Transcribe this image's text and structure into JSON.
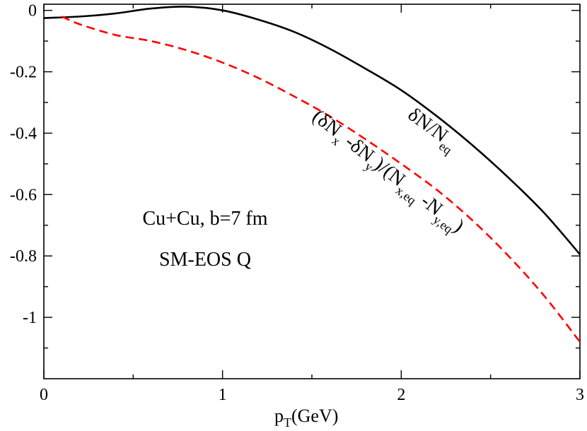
{
  "chart_data": {
    "type": "line",
    "title": "",
    "xlabel": "p",
    "xlabel_sub": "T",
    "xlabel_unit": "(GeV)",
    "ylabel": "",
    "xlim": [
      0,
      3
    ],
    "ylim": [
      -1.2,
      0.02
    ],
    "x_ticks": [
      0,
      1,
      2,
      3
    ],
    "x_tick_labels": [
      "0",
      "1",
      "2",
      "3"
    ],
    "y_ticks": [
      0,
      -0.2,
      -0.4,
      -0.6,
      -0.8,
      -1
    ],
    "y_tick_labels": [
      "0",
      "-0.2",
      "-0.4",
      "-0.6",
      "-0.8",
      "-1"
    ],
    "grid": false,
    "series": [
      {
        "name": "δN/N_eq",
        "color": "#000000",
        "dash": "solid",
        "x": [
          0,
          0.2,
          0.4,
          0.6,
          0.8,
          1.0,
          1.2,
          1.4,
          1.6,
          1.8,
          2.0,
          2.2,
          2.4,
          2.6,
          2.8,
          3.0
        ],
        "y": [
          -0.025,
          -0.02,
          -0.01,
          0.006,
          0.012,
          0.0,
          -0.03,
          -0.07,
          -0.125,
          -0.19,
          -0.26,
          -0.345,
          -0.44,
          -0.545,
          -0.66,
          -0.795
        ]
      },
      {
        "name": "(δN_x-δN_y)/(N_x,eq-N_y,eq)",
        "color": "#ff0000",
        "dash": "dashed",
        "x": [
          0.1,
          0.2,
          0.4,
          0.6,
          0.8,
          1.0,
          1.2,
          1.4,
          1.6,
          1.8,
          2.0,
          2.2,
          2.4,
          2.6,
          2.8,
          3.0
        ],
        "y": [
          -0.02,
          -0.045,
          -0.08,
          -0.1,
          -0.13,
          -0.17,
          -0.22,
          -0.28,
          -0.345,
          -0.42,
          -0.5,
          -0.585,
          -0.685,
          -0.8,
          -0.93,
          -1.08
        ]
      }
    ],
    "label_black": {
      "base": "δN/N",
      "sub": "eq"
    },
    "label_red": {
      "p1": "(δN",
      "s1": "x",
      "p2": " -δN",
      "s2": "y",
      "p3": ")/(N",
      "s3": "x,eq",
      "p4": " -N",
      "s4": "y,eq",
      "p5": ")"
    },
    "annotations": [
      "Cu+Cu, b=7 fm",
      "SM-EOS Q"
    ]
  }
}
